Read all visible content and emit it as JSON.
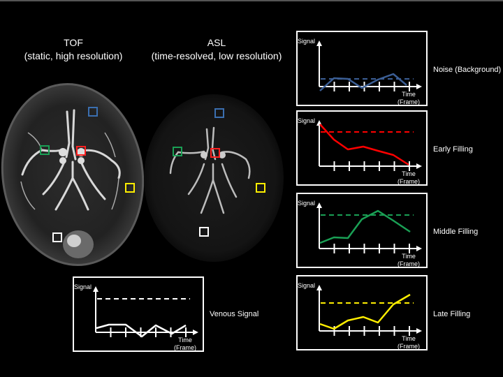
{
  "titles": {
    "tof": {
      "line1": "TOF",
      "line2": "(static, high resolution)"
    },
    "asl": {
      "line1": "ASL",
      "line2": "(time-resolved, low resolution)"
    }
  },
  "axis": {
    "signal": "Signal",
    "time": "Time",
    "frame": "(Frame)"
  },
  "panels": [
    {
      "id": "noise",
      "label": "Noise (Background)",
      "color": "#3b5e95"
    },
    {
      "id": "early",
      "label": "Early Filling",
      "color": "#ff0000"
    },
    {
      "id": "middle",
      "label": "Middle Filling",
      "color": "#1aa055"
    },
    {
      "id": "late",
      "label": "Late Filling",
      "color": "#ffee00"
    },
    {
      "id": "venous",
      "label": "Venous Signal",
      "color": "#ffffff"
    }
  ],
  "roi_colors": {
    "blue": "#3b6fb0",
    "green": "#1aa055",
    "red": "#ff2020",
    "yellow": "#ffee00",
    "white": "#ffffff"
  }
}
